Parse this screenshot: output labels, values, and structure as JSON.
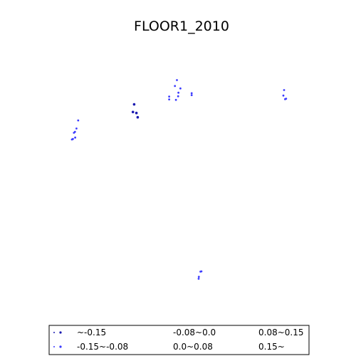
{
  "chart_data": {
    "type": "scatter",
    "title": "FLOOR1_2010",
    "grid": false,
    "axes_visible": false,
    "legend_placement": "bottom",
    "xlim": [
      0,
      1
    ],
    "ylim": [
      0,
      1
    ],
    "series": [
      {
        "name": "~-0.15",
        "color": "#1a1ab0",
        "points": [
          {
            "x": 0.289,
            "y": 0.825
          },
          {
            "x": 0.284,
            "y": 0.793
          },
          {
            "x": 0.298,
            "y": 0.789
          },
          {
            "x": 0.303,
            "y": 0.771
          }
        ]
      },
      {
        "name": "-0.15~-0.08",
        "color": "#3b3bff",
        "points": [
          {
            "x": 0.065,
            "y": 0.758
          },
          {
            "x": 0.058,
            "y": 0.724
          },
          {
            "x": 0.052,
            "y": 0.71
          },
          {
            "x": 0.048,
            "y": 0.706
          },
          {
            "x": 0.053,
            "y": 0.686
          },
          {
            "x": 0.044,
            "y": 0.68
          },
          {
            "x": 0.04,
            "y": 0.678
          },
          {
            "x": 0.46,
            "y": 0.927
          },
          {
            "x": 0.452,
            "y": 0.902
          },
          {
            "x": 0.474,
            "y": 0.892
          },
          {
            "x": 0.466,
            "y": 0.874
          },
          {
            "x": 0.519,
            "y": 0.872
          },
          {
            "x": 0.519,
            "y": 0.864
          },
          {
            "x": 0.465,
            "y": 0.859
          },
          {
            "x": 0.429,
            "y": 0.858
          },
          {
            "x": 0.429,
            "y": 0.846
          },
          {
            "x": 0.456,
            "y": 0.844
          },
          {
            "x": 0.889,
            "y": 0.885
          },
          {
            "x": 0.886,
            "y": 0.862
          },
          {
            "x": 0.897,
            "y": 0.849
          },
          {
            "x": 0.893,
            "y": 0.847
          },
          {
            "x": 0.558,
            "y": 0.125
          },
          {
            "x": 0.554,
            "y": 0.124
          },
          {
            "x": 0.548,
            "y": 0.102
          },
          {
            "x": 0.547,
            "y": 0.094
          }
        ]
      },
      {
        "name": "-0.08~0.0",
        "color": "#3b3bff",
        "points": []
      },
      {
        "name": "0.0~0.08",
        "color": "#3b3bff",
        "points": []
      },
      {
        "name": "0.08~0.15",
        "color": "#3b3bff",
        "points": []
      },
      {
        "name": "0.15~",
        "color": "#3b3bff",
        "points": []
      }
    ]
  }
}
